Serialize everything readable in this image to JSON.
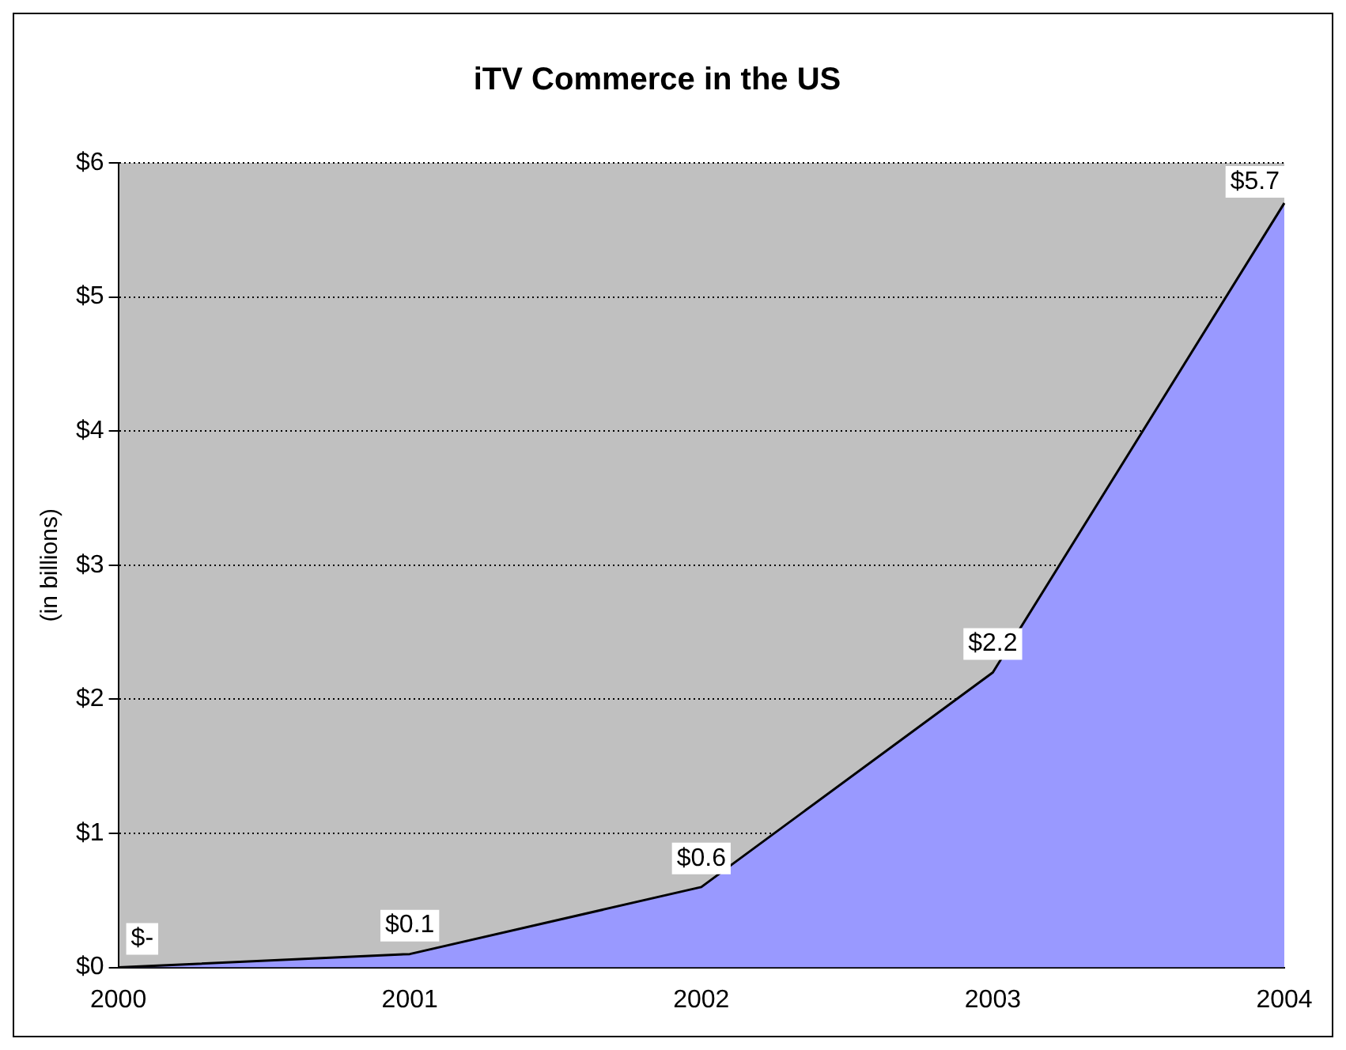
{
  "chart_data": {
    "type": "area",
    "title": "iTV Commerce in the US",
    "ylabel": "(in billions)",
    "categories": [
      "2000",
      "2001",
      "2002",
      "2003",
      "2004"
    ],
    "series": [
      {
        "color": "#9999ff",
        "values": [
          0,
          0.1,
          0.6,
          2.2,
          5.7
        ],
        "value_labels": [
          "$-",
          "$0.1",
          "$0.6",
          "$2.2",
          "$5.7"
        ]
      }
    ],
    "ylim": [
      0,
      6
    ],
    "yticks": [
      {
        "value": 0,
        "label": "$0"
      },
      {
        "value": 1,
        "label": "$1"
      },
      {
        "value": 2,
        "label": "$2"
      },
      {
        "value": 3,
        "label": "$3"
      },
      {
        "value": 4,
        "label": "$4"
      },
      {
        "value": 5,
        "label": "$5"
      },
      {
        "value": 6,
        "label": "$6"
      }
    ],
    "grid": "y",
    "legend": false,
    "line_style": "solid",
    "marker": "none"
  }
}
